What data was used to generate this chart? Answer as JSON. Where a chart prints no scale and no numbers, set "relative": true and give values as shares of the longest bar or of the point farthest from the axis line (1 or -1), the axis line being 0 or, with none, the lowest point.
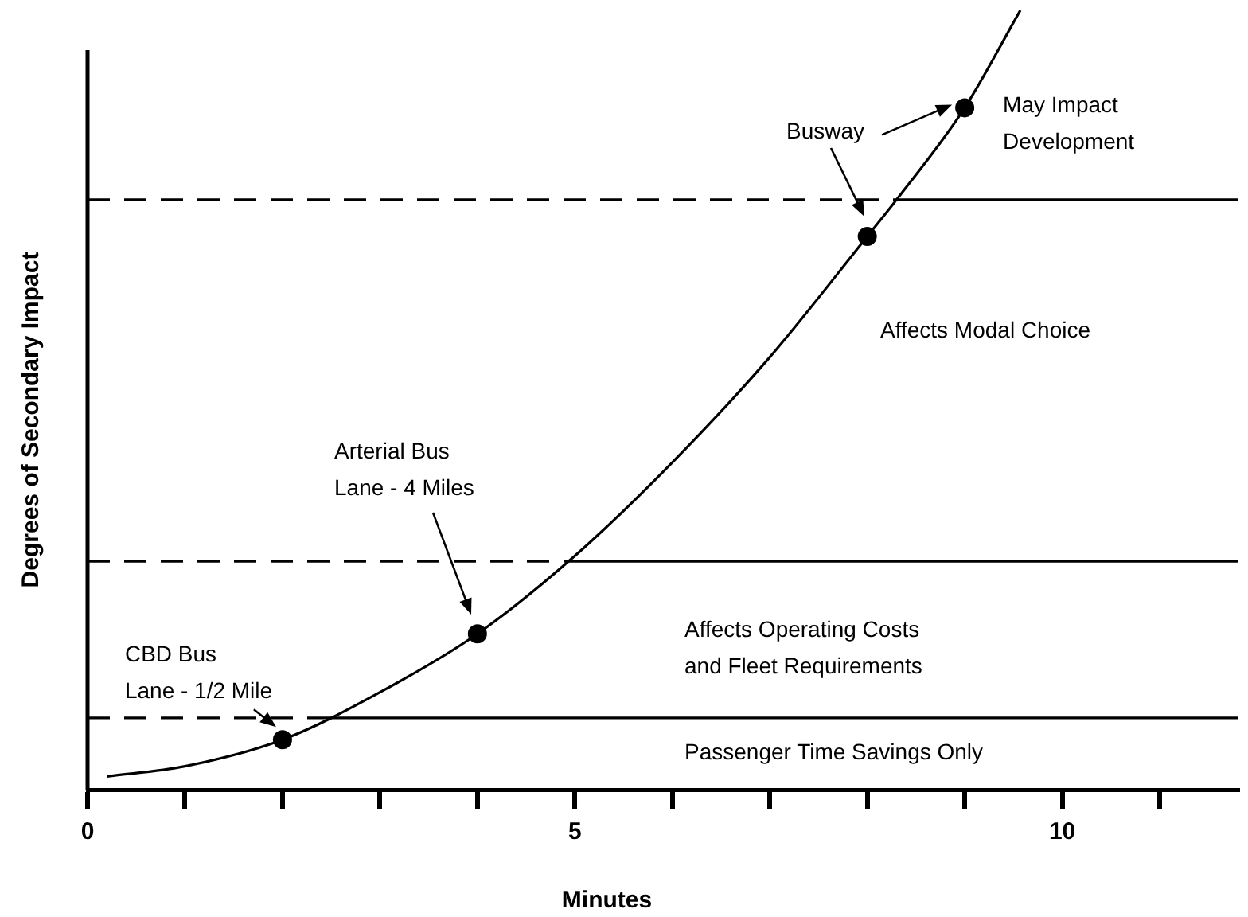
{
  "chart_data": {
    "type": "line",
    "xlabel": "Minutes",
    "ylabel": "Degrees of Secondary Impact",
    "relative": true,
    "xlim": [
      0,
      11.8
    ],
    "xticks": [
      0,
      {
        "value": 1,
        "label": null
      },
      {
        "value": 2,
        "label": null
      },
      {
        "value": 3,
        "label": null
      },
      {
        "value": 4,
        "label": null
      },
      5,
      {
        "value": 6,
        "label": null
      },
      {
        "value": 7,
        "label": null
      },
      {
        "value": 8,
        "label": null
      },
      {
        "value": 9,
        "label": null
      },
      10,
      {
        "value": 11,
        "label": null
      }
    ],
    "series": [
      {
        "type": "line",
        "color": "#000000",
        "marker": "none",
        "x": [
          0.2,
          1,
          2,
          3,
          4,
          5,
          6,
          7,
          8,
          8.3,
          9,
          9.57
        ],
        "values": [
          0.017,
          0.03,
          0.064,
          0.125,
          0.2,
          0.3,
          0.42,
          0.555,
          0.71,
          0.757,
          0.875,
          1
        ]
      },
      {
        "type": "scatter",
        "color": "#000000",
        "marker": "circle",
        "x": [
          2,
          4,
          8,
          9
        ],
        "values": [
          0.064,
          0.2,
          0.71,
          0.875
        ]
      }
    ],
    "ref_lines": [
      {
        "axis": "y",
        "value": 0.092,
        "color": "#000000"
      },
      {
        "axis": "y",
        "value": 0.293,
        "color": "#000000"
      },
      {
        "axis": "y",
        "value": 0.757,
        "color": "#000000"
      }
    ],
    "annotations": [
      {
        "text": "CBD Bus\nLane - 1/2 Mile",
        "x": 2,
        "y": 0.064
      },
      "Arterial Bus\nLane - 4 Miles",
      "Busway",
      {
        "text": "May Impact\nDevelopment",
        "x": 9,
        "y": 0.875
      },
      "Affects Modal Choice",
      "Affects Operating Costs\nand Fleet Requirements",
      "Passenger Time Savings Only"
    ]
  }
}
